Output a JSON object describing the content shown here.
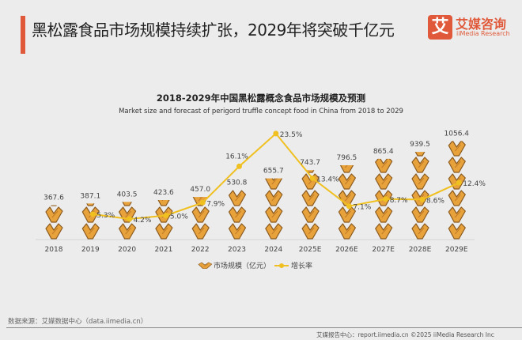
{
  "header": {
    "title": "黑松露食品市场规模持续扩张，2029年将突破千亿元"
  },
  "logo": {
    "mark": "艾",
    "cn": "艾媒咨询",
    "en": "iiMedia Research"
  },
  "chart_data": {
    "type": "pictogram-bar+line",
    "title": "2018-2029年中国黑松露概念食品市场规模及预测",
    "subtitle": "Market size and forecast of perigord truffle concept food in China from 2018 to 2029",
    "categories": [
      "2018",
      "2019",
      "2020",
      "2021",
      "2022",
      "2023",
      "2024",
      "2025E",
      "2026E",
      "2027E",
      "2028E",
      "2029E"
    ],
    "series": [
      {
        "name": "市场规模（亿元）",
        "type": "pictogram",
        "values": [
          367.6,
          387.1,
          403.5,
          423.6,
          457.0,
          530.8,
          655.7,
          743.7,
          796.5,
          865.4,
          939.5,
          1056.4
        ],
        "labels": [
          "367.6",
          "387.1",
          "403.5",
          "423.6",
          "457.0",
          "530.8",
          "655.7",
          "743.7",
          "796.5",
          "865.4",
          "939.5",
          "1056.4"
        ]
      },
      {
        "name": "增长率",
        "type": "line",
        "values": [
          null,
          5.3,
          4.2,
          5.0,
          7.9,
          16.1,
          23.5,
          13.4,
          7.1,
          8.7,
          8.6,
          12.4
        ],
        "labels": [
          "",
          "5.3%",
          "4.2%",
          "5.0%",
          "7.9%",
          "16.1%",
          "23.5%",
          "13.4%",
          "7.1%",
          "8.7%",
          "8.6%",
          "12.4%"
        ]
      }
    ],
    "legend_placement": "bottom",
    "colors": {
      "bar": "#e8a23c",
      "bar_stroke": "#8a5a1e",
      "line": "#f0c020"
    }
  },
  "source": "数据来源：艾媒数据中心（data.iimedia.cn）",
  "footer": "艾媒报告中心：report.iimedia.cn   ©2025  iiMedia Research  Inc"
}
